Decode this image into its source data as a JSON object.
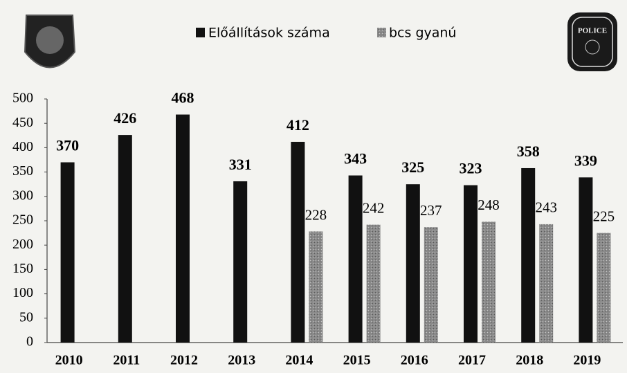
{
  "chart_data": {
    "type": "bar",
    "categories": [
      "2010",
      "2011",
      "2012",
      "2013",
      "2014",
      "2015",
      "2016",
      "2017",
      "2018",
      "2019"
    ],
    "series": [
      {
        "name": "Előállítások száma",
        "color": "#111111",
        "values": [
          370,
          426,
          468,
          331,
          412,
          343,
          325,
          323,
          358,
          339
        ]
      },
      {
        "name": "bcs gyanú",
        "color": "#8a8a8a",
        "values": [
          null,
          null,
          null,
          null,
          228,
          242,
          237,
          248,
          243,
          225
        ]
      }
    ],
    "ylim": [
      0,
      500
    ],
    "yticks": [
      0,
      50,
      100,
      150,
      200,
      250,
      300,
      350,
      400,
      450,
      500
    ],
    "grid": false,
    "legend": "top",
    "annotations": [
      "POLICE"
    ]
  }
}
